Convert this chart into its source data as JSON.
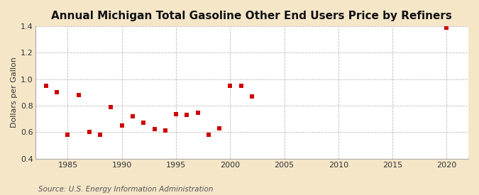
{
  "title": "Annual Michigan Total Gasoline Other End Users Price by Refiners",
  "ylabel": "Dollars per Gallon",
  "source": "Source: U.S. Energy Information Administration",
  "fig_background_color": "#f5e6c8",
  "plot_background_color": "#ffffff",
  "marker_color": "#cc0000",
  "xlim": [
    1982,
    2022
  ],
  "ylim": [
    0.4,
    1.4
  ],
  "xticks": [
    1985,
    1990,
    1995,
    2000,
    2005,
    2010,
    2015,
    2020
  ],
  "yticks": [
    0.4,
    0.6,
    0.8,
    1.0,
    1.2,
    1.4
  ],
  "years": [
    1983,
    1984,
    1985,
    1986,
    1987,
    1988,
    1989,
    1990,
    1991,
    1992,
    1993,
    1994,
    1995,
    1996,
    1997,
    1998,
    1999,
    2000,
    2001,
    2002,
    2020
  ],
  "values": [
    0.951,
    0.901,
    0.581,
    0.879,
    0.601,
    0.583,
    0.789,
    0.651,
    0.72,
    0.67,
    0.621,
    0.611,
    0.737,
    0.731,
    0.748,
    0.581,
    0.631,
    0.949,
    0.951,
    0.871,
    1.389
  ],
  "title_fontsize": 11,
  "label_fontsize": 8,
  "tick_fontsize": 8,
  "source_fontsize": 7.5,
  "marker_size": 16
}
